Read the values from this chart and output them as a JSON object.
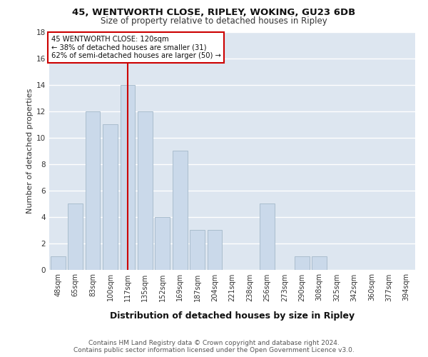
{
  "title1": "45, WENTWORTH CLOSE, RIPLEY, WOKING, GU23 6DB",
  "title2": "Size of property relative to detached houses in Ripley",
  "xlabel": "Distribution of detached houses by size in Ripley",
  "ylabel": "Number of detached properties",
  "categories": [
    "48sqm",
    "65sqm",
    "83sqm",
    "100sqm",
    "117sqm",
    "135sqm",
    "152sqm",
    "169sqm",
    "187sqm",
    "204sqm",
    "221sqm",
    "238sqm",
    "256sqm",
    "273sqm",
    "290sqm",
    "308sqm",
    "325sqm",
    "342sqm",
    "360sqm",
    "377sqm",
    "394sqm"
  ],
  "values": [
    1,
    5,
    12,
    11,
    14,
    12,
    4,
    9,
    3,
    3,
    0,
    0,
    5,
    0,
    1,
    1,
    0,
    0,
    0,
    0,
    0
  ],
  "bar_color": "#cad9ea",
  "bar_edge_color": "#aabdce",
  "vline_index": 4,
  "vline_color": "#cc0000",
  "annotation_text": "45 WENTWORTH CLOSE: 120sqm\n← 38% of detached houses are smaller (31)\n62% of semi-detached houses are larger (50) →",
  "annotation_box_facecolor": "#ffffff",
  "annotation_box_edgecolor": "#cc0000",
  "ylim": [
    0,
    18
  ],
  "yticks": [
    0,
    2,
    4,
    6,
    8,
    10,
    12,
    14,
    16,
    18
  ],
  "bg_color": "#dde6f0",
  "title1_fontsize": 9.5,
  "title2_fontsize": 8.5,
  "ylabel_fontsize": 8,
  "xlabel_fontsize": 9,
  "tick_fontsize": 7,
  "footer": "Contains HM Land Registry data © Crown copyright and database right 2024.\nContains public sector information licensed under the Open Government Licence v3.0.",
  "footer_fontsize": 6.5
}
